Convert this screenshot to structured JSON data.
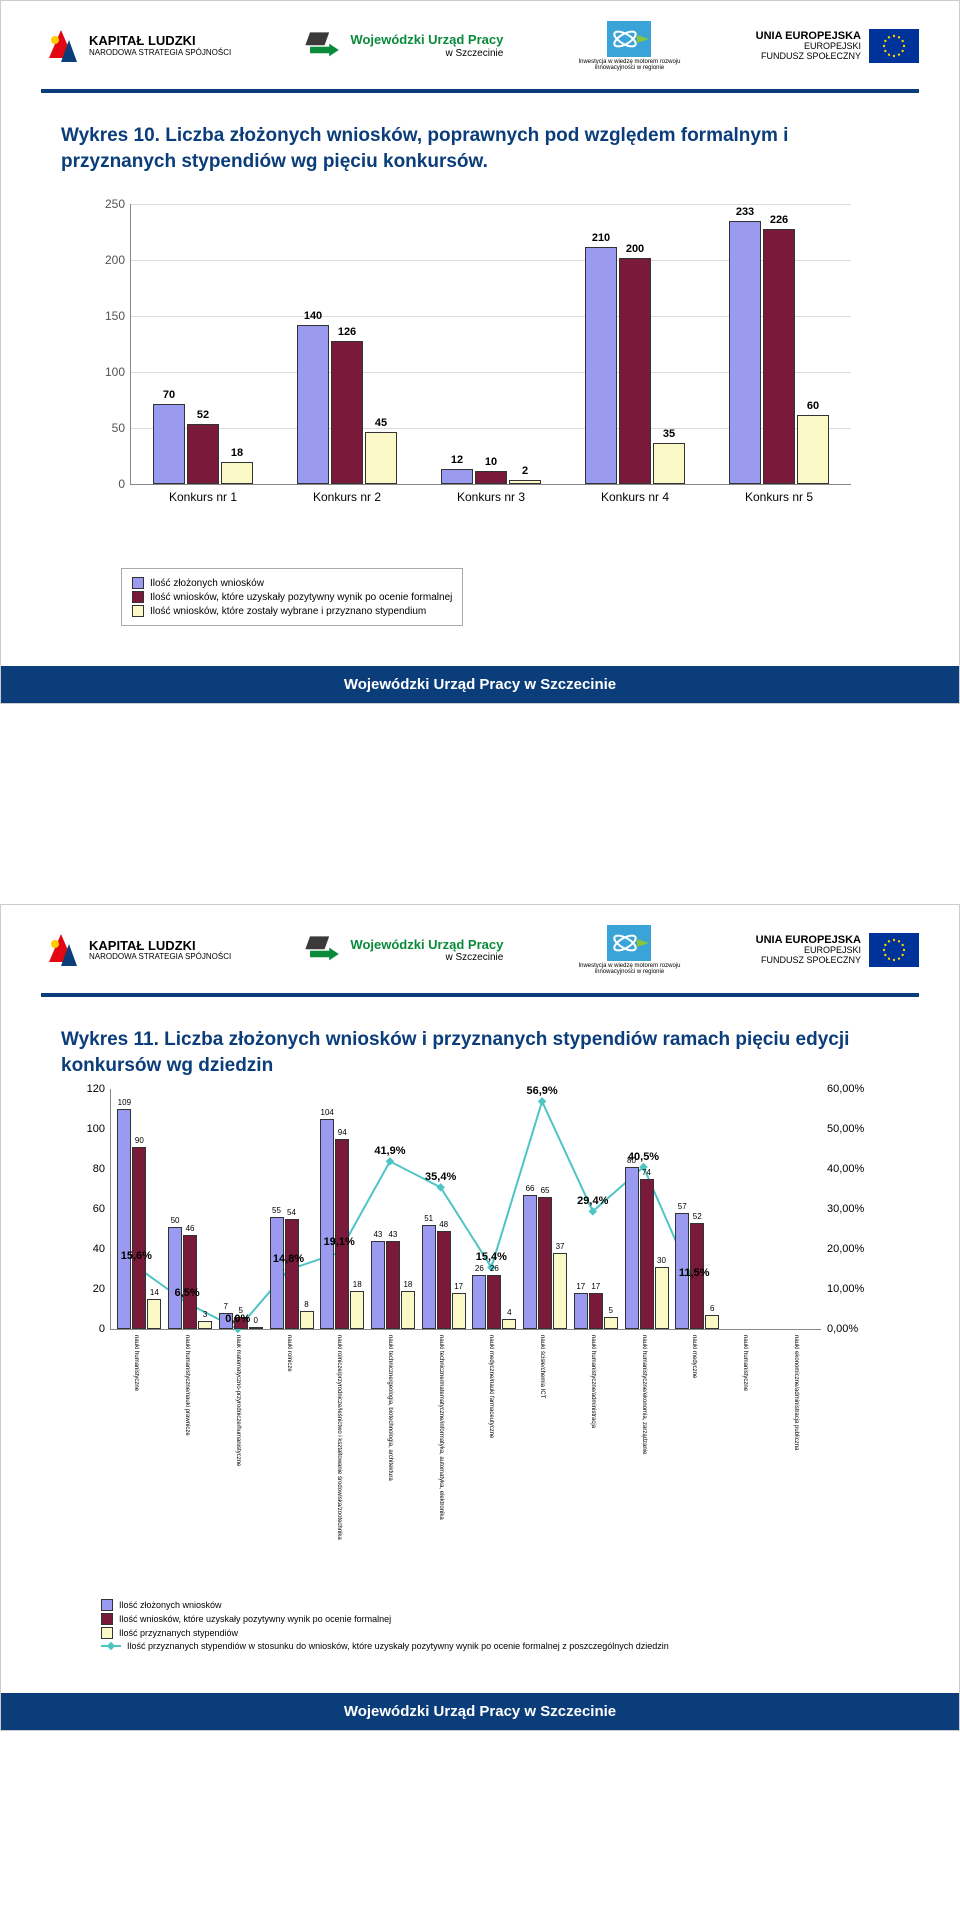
{
  "colors": {
    "navy": "#0a3d7a",
    "series1": "#9a9af0",
    "series2": "#7a1a3a",
    "series3": "#fbf8c8",
    "line": "#4fc4c4",
    "grid": "#dddddd",
    "bg": "#ffffff"
  },
  "header": {
    "kapital_title": "KAPITAŁ LUDZKI",
    "kapital_sub": "NARODOWA STRATEGIA SPÓJNOŚCI",
    "wup_title": "Wojewódzki Urząd Pracy",
    "wup_sub": "w Szczecinie",
    "invest_sub": "Inwestycja w wiedzę motorem rozwoju innowacyjności w regionie",
    "eu_title": "UNIA EUROPEJSKA",
    "eu_sub1": "EUROPEJSKI",
    "eu_sub2": "FUNDUSZ SPOŁECZNY"
  },
  "footer": "Wojewódzki Urząd Pracy w Szczecinie",
  "slide1": {
    "title": "Wykres 10. Liczba złożonych wniosków, poprawnych pod względem formalnym i przyznanych stypendiów wg pięciu konkursów.",
    "ymax": 250,
    "ystep": 50,
    "categories": [
      "Konkurs nr 1",
      "Konkurs nr 2",
      "Konkurs nr 3",
      "Konkurs nr 4",
      "Konkurs nr 5"
    ],
    "series": [
      {
        "label": "Ilość złożonych wniosków",
        "color": "#9a9af0",
        "values": [
          70,
          140,
          12,
          210,
          233
        ]
      },
      {
        "label": "Ilość wniosków, które uzyskały pozytywny wynik po ocenie formalnej",
        "color": "#7a1a3a",
        "values": [
          52,
          126,
          10,
          200,
          226
        ]
      },
      {
        "label": "Ilość wniosków, które zostały wybrane i przyznano stypendium",
        "color": "#fbf8c8",
        "values": [
          18,
          45,
          2,
          35,
          60
        ]
      }
    ]
  },
  "slide2": {
    "title": "Wykres 11. Liczba złożonych wniosków i przyznanych stypendiów ramach pięciu edycji konkursów wg dziedzin",
    "ymax_l": 120,
    "ystep_l": 20,
    "ymax_r": 60.0,
    "ystep_r": 10.0,
    "categories": [
      "nauki humanistyczne",
      "nauki humanistyczne/nauki prawnicze",
      "nauk matematyczno-przyrodnicze/humanistyczne",
      "nauki rolnicze",
      "nauki rolnicze/przyrodnicze/leśnictwo i kształtowanie środowiska/zootechnika",
      "nauki techniczne/geologia, biotechnologia, architektura",
      "nauki techniczne/matematyczne/informatyka, automatyka, elektronika",
      "nauki medyczne/nauki farmaceutyczne",
      "nauki ścisłe/chemia ICT",
      "nauki humanistyczne/administracja",
      "nauki humanistyczne/ekonomia, zarządzanie",
      "nauki medyczne",
      "nauki humanistyczne",
      "nauki ekonomiczne/administracja publiczna"
    ],
    "bars": [
      {
        "label": "Ilość złożonych wniosków",
        "color": "#9a9af0",
        "values": [
          109,
          50,
          7,
          55,
          104,
          43,
          51,
          26,
          66,
          17,
          80,
          57,
          0,
          0
        ]
      },
      {
        "label": "Ilość wniosków, które uzyskały pozytywny wynik po ocenie formalnej",
        "color": "#7a1a3a",
        "values": [
          90,
          46,
          5,
          54,
          94,
          43,
          48,
          26,
          65,
          17,
          74,
          52,
          0,
          0
        ]
      },
      {
        "label": "Ilość przyznanych stypendiów",
        "color": "#fbf8c8",
        "values": [
          14,
          3,
          0,
          8,
          18,
          18,
          17,
          4,
          37,
          5,
          30,
          6,
          0,
          0
        ]
      }
    ],
    "line": {
      "label": "Ilość przyznanych stypendiów w stosunku do wniosków, które uzyskały pozytywny wynik po ocenie formalnej z poszczególnych dziedzin",
      "color": "#4fc4c4",
      "values": [
        15.6,
        6.5,
        0.0,
        14.8,
        19.1,
        41.9,
        35.4,
        15.4,
        56.9,
        29.4,
        40.5,
        11.5,
        null,
        null
      ]
    },
    "pct_labels": [
      "15,6%",
      "6,5%",
      "0,0%",
      "14,8%",
      "19,1%",
      "41,9%",
      "35,4%",
      "15,4%",
      "56,9%",
      "29,4%",
      "40,5%",
      "11,5%"
    ]
  }
}
